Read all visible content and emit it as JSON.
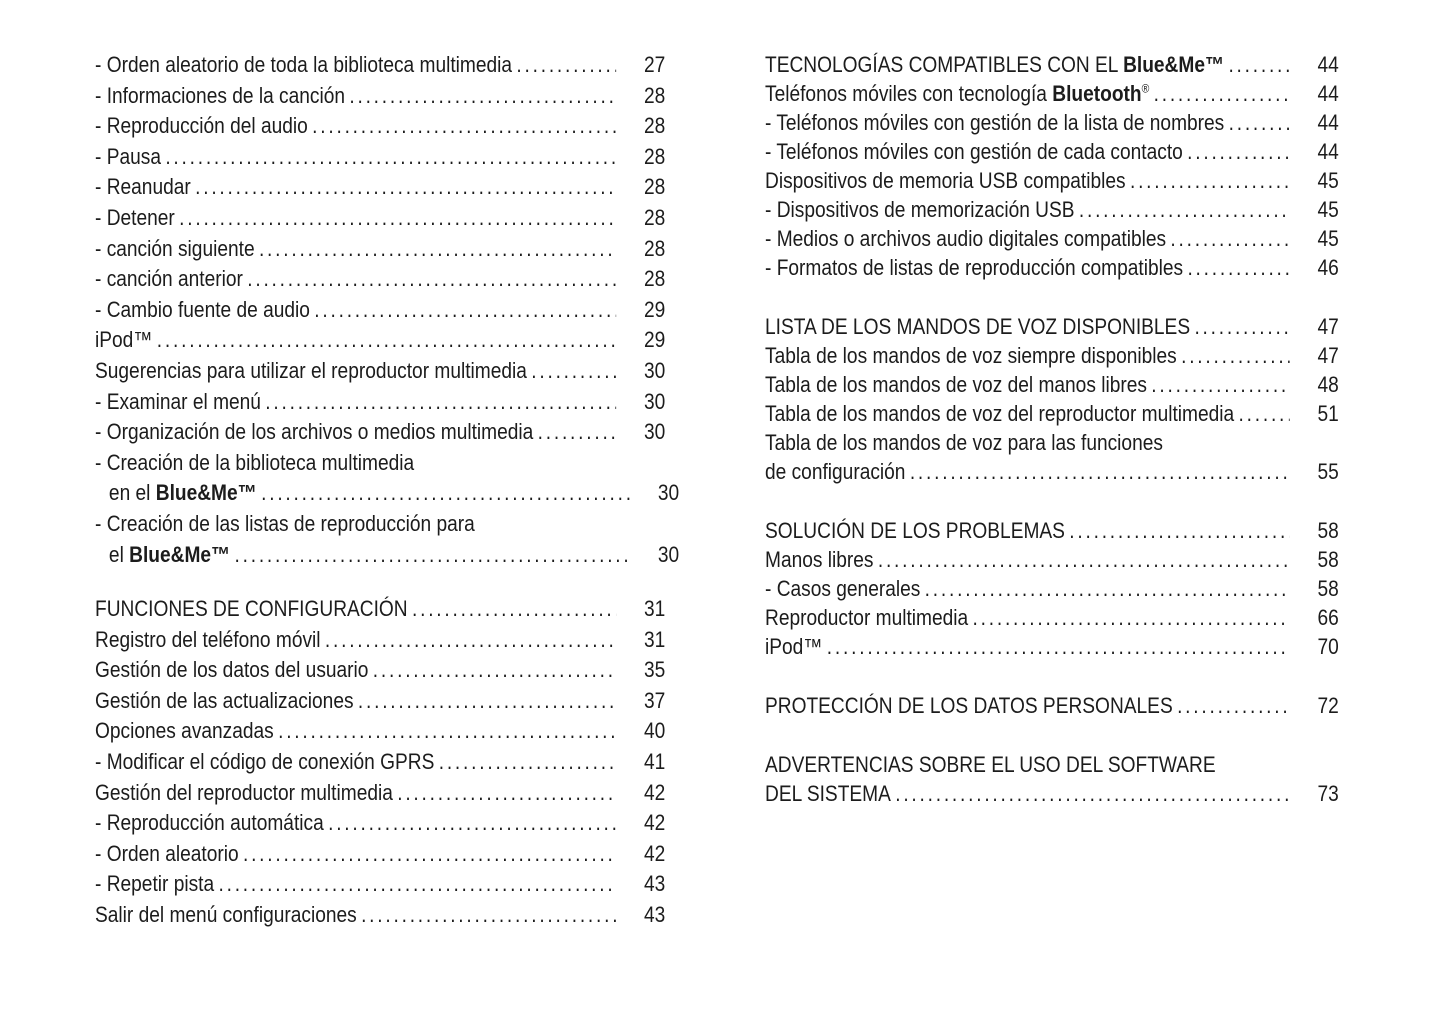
{
  "page": {
    "background": "#ffffff",
    "text_color": "#1c1c1c"
  },
  "toc": {
    "left_column": [
      {
        "parts": [
          {
            "text": "- Orden aleatorio de toda la biblioteca multimedia"
          }
        ],
        "page": "27"
      },
      {
        "parts": [
          {
            "text": "- Informaciones de la canción"
          }
        ],
        "page": "28"
      },
      {
        "parts": [
          {
            "text": "- Reproducción del audio"
          }
        ],
        "page": "28"
      },
      {
        "parts": [
          {
            "text": "- Pausa"
          }
        ],
        "page": "28"
      },
      {
        "parts": [
          {
            "text": "- Reanudar"
          }
        ],
        "page": "28"
      },
      {
        "parts": [
          {
            "text": "- Detener"
          }
        ],
        "page": "28"
      },
      {
        "parts": [
          {
            "text": "- canción siguiente"
          }
        ],
        "page": "28"
      },
      {
        "parts": [
          {
            "text": "- canción anterior"
          }
        ],
        "page": "28"
      },
      {
        "parts": [
          {
            "text": "- Cambio fuente de audio"
          }
        ],
        "page": "29"
      },
      {
        "parts": [
          {
            "text": "iPod™"
          }
        ],
        "page": "29"
      },
      {
        "parts": [
          {
            "text": "Sugerencias para utilizar el reproductor multimedia"
          }
        ],
        "page": "30"
      },
      {
        "parts": [
          {
            "text": "- Examinar el menú"
          }
        ],
        "page": "30"
      },
      {
        "parts": [
          {
            "text": "- Organización de los archivos o medios multimedia"
          }
        ],
        "page": "30"
      },
      {
        "parts": [
          {
            "text": "- Creación de la biblioteca multimedia"
          }
        ],
        "page": null
      },
      {
        "parts": [
          {
            "text": "en el "
          },
          {
            "text": "Blue&Me™",
            "bold": true
          }
        ],
        "page": "30",
        "indent": true
      },
      {
        "parts": [
          {
            "text": "- Creación de las listas de reproducción para"
          }
        ],
        "page": null
      },
      {
        "parts": [
          {
            "text": "el "
          },
          {
            "text": "Blue&Me™",
            "bold": true
          }
        ],
        "page": "30",
        "indent": true
      },
      {
        "spacer": true
      },
      {
        "parts": [
          {
            "text": "FUNCIONES DE CONFIGURACIÓN"
          }
        ],
        "page": "31",
        "heading": true
      },
      {
        "parts": [
          {
            "text": "Registro del teléfono móvil"
          }
        ],
        "page": "31"
      },
      {
        "parts": [
          {
            "text": "Gestión de los datos del usuario"
          }
        ],
        "page": "35"
      },
      {
        "parts": [
          {
            "text": "Gestión de las actualizaciones"
          }
        ],
        "page": "37"
      },
      {
        "parts": [
          {
            "text": "Opciones avanzadas"
          }
        ],
        "page": "40"
      },
      {
        "parts": [
          {
            "text": "- Modificar el código de conexión GPRS"
          }
        ],
        "page": "41"
      },
      {
        "parts": [
          {
            "text": "Gestión del reproductor multimedia"
          }
        ],
        "page": "42"
      },
      {
        "parts": [
          {
            "text": "- Reproducción automática"
          }
        ],
        "page": "42"
      },
      {
        "parts": [
          {
            "text": "- Orden aleatorio"
          }
        ],
        "page": "42"
      },
      {
        "parts": [
          {
            "text": "- Repetir pista"
          }
        ],
        "page": "43"
      },
      {
        "parts": [
          {
            "text": "Salir del menú configuraciones"
          }
        ],
        "page": "43"
      }
    ],
    "right_column": [
      {
        "parts": [
          {
            "text": "TECNOLOGÍAS COMPATIBLES CON EL "
          },
          {
            "text": "Blue&Me™",
            "bold": true
          }
        ],
        "page": "44",
        "heading": true
      },
      {
        "parts": [
          {
            "text": "Teléfonos móviles con tecnología "
          },
          {
            "text": "Bluetooth",
            "bold": true
          },
          {
            "text": "®",
            "sup": true
          }
        ],
        "page": "44"
      },
      {
        "parts": [
          {
            "text": "- Teléfonos móviles con gestión de la lista de nombres"
          }
        ],
        "page": "44"
      },
      {
        "parts": [
          {
            "text": "- Teléfonos móviles con gestión de cada contacto"
          }
        ],
        "page": "44"
      },
      {
        "parts": [
          {
            "text": "Dispositivos de memoria USB compatibles"
          }
        ],
        "page": "45"
      },
      {
        "parts": [
          {
            "text": "- Dispositivos de memorización USB"
          }
        ],
        "page": "45"
      },
      {
        "parts": [
          {
            "text": "- Medios o archivos audio digitales compatibles"
          }
        ],
        "page": "45"
      },
      {
        "parts": [
          {
            "text": "- Formatos de listas de reproducción compatibles"
          }
        ],
        "page": "46"
      },
      {
        "spacer": true
      },
      {
        "parts": [
          {
            "text": "LISTA DE LOS MANDOS DE VOZ DISPONIBLES"
          }
        ],
        "page": "47",
        "heading": true
      },
      {
        "parts": [
          {
            "text": "Tabla de los mandos de voz siempre disponibles"
          }
        ],
        "page": "47"
      },
      {
        "parts": [
          {
            "text": "Tabla de los mandos de voz del manos libres"
          }
        ],
        "page": "48"
      },
      {
        "parts": [
          {
            "text": "Tabla de los mandos de voz del reproductor multimedia"
          }
        ],
        "page": "51"
      },
      {
        "parts": [
          {
            "text": "Tabla de los mandos de voz para las funciones"
          }
        ],
        "page": null
      },
      {
        "parts": [
          {
            "text": "de configuración"
          }
        ],
        "page": "55"
      },
      {
        "spacer": true
      },
      {
        "parts": [
          {
            "text": "SOLUCIÓN DE LOS PROBLEMAS"
          }
        ],
        "page": "58",
        "heading": true
      },
      {
        "parts": [
          {
            "text": "Manos libres"
          }
        ],
        "page": "58"
      },
      {
        "parts": [
          {
            "text": "- Casos generales"
          }
        ],
        "page": "58"
      },
      {
        "parts": [
          {
            "text": "Reproductor multimedia"
          }
        ],
        "page": "66"
      },
      {
        "parts": [
          {
            "text": "iPod™"
          }
        ],
        "page": "70"
      },
      {
        "spacer": true
      },
      {
        "parts": [
          {
            "text": "PROTECCIÓN DE LOS DATOS PERSONALES"
          }
        ],
        "page": "72",
        "heading": true
      },
      {
        "spacer": true
      },
      {
        "parts": [
          {
            "text": "ADVERTENCIAS SOBRE EL USO DEL SOFTWARE"
          }
        ],
        "page": null,
        "heading": true
      },
      {
        "parts": [
          {
            "text": "DEL SISTEMA"
          }
        ],
        "page": "73",
        "heading": true
      }
    ]
  }
}
